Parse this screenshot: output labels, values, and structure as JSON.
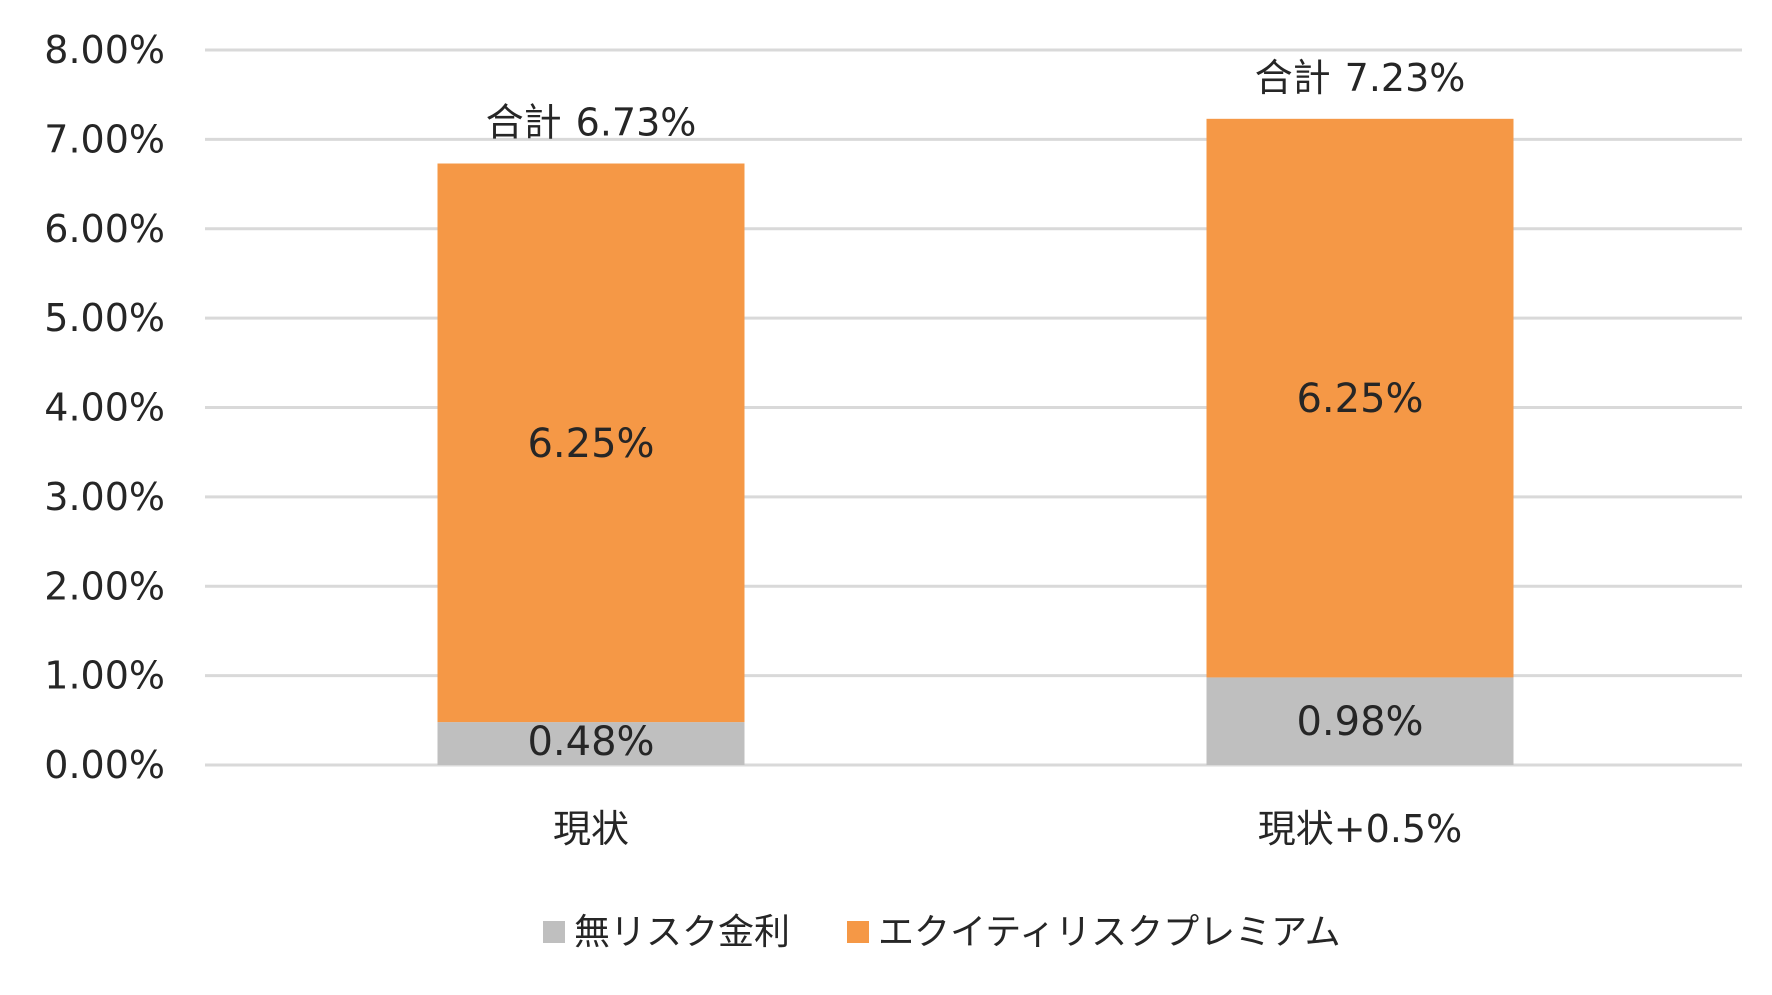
{
  "chart_data": {
    "type": "bar",
    "stacked": true,
    "categories": [
      "現状",
      "現状+0.5%"
    ],
    "series": [
      {
        "name": "無リスク金利",
        "values": [
          0.48,
          0.98
        ],
        "color": "#bfbfbf",
        "labels": [
          "0.48%",
          "0.98%"
        ]
      },
      {
        "name": "エクイティリスクプレミアム",
        "values": [
          6.25,
          6.25
        ],
        "color": "#f59846",
        "labels": [
          "6.25%",
          "6.25%"
        ]
      }
    ],
    "totals": [
      {
        "prefix": "合計",
        "value": 6.73,
        "label": "6.73%"
      },
      {
        "prefix": "合計",
        "value": 7.23,
        "label": "7.23%"
      }
    ],
    "ylim": [
      0,
      8
    ],
    "yticks": [
      0,
      1,
      2,
      3,
      4,
      5,
      6,
      7,
      8
    ],
    "ytick_labels": [
      "0.00%",
      "1.00%",
      "2.00%",
      "3.00%",
      "4.00%",
      "5.00%",
      "6.00%",
      "7.00%",
      "8.00%"
    ],
    "grid": true,
    "gridline_color": "#d9d9d9",
    "legend_position": "bottom",
    "title": "",
    "xlabel": "",
    "ylabel": ""
  }
}
